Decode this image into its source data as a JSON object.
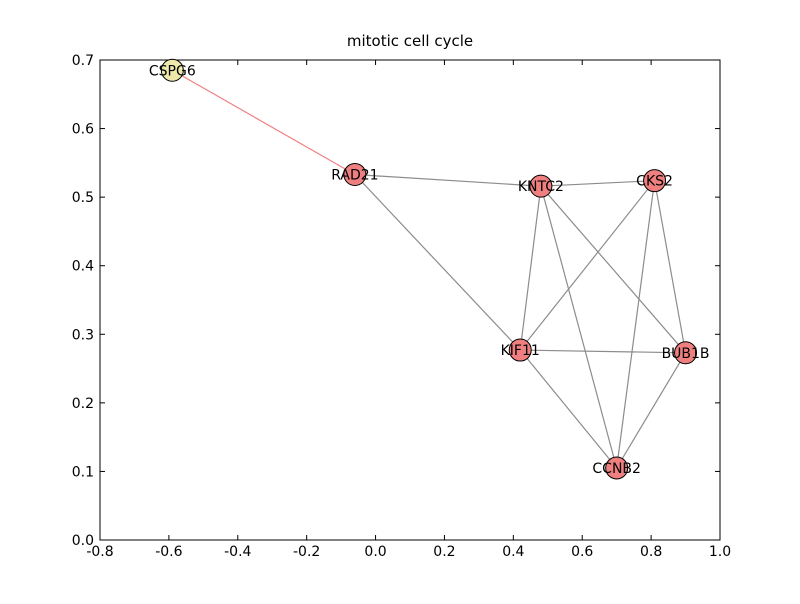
{
  "chart_data": {
    "type": "scatter",
    "title": "mitotic cell cycle",
    "xlabel": "",
    "ylabel": "",
    "xlim": [
      -0.8,
      1.0
    ],
    "ylim": [
      0.0,
      0.7
    ],
    "xticks": [
      -0.8,
      -0.6,
      -0.4,
      -0.2,
      0.0,
      0.2,
      0.4,
      0.6,
      0.8,
      1.0
    ],
    "xtick_labels": [
      "-0.8",
      "-0.6",
      "-0.4",
      "-0.2",
      "0.0",
      "0.2",
      "0.4",
      "0.6",
      "0.8",
      "1.0"
    ],
    "yticks": [
      0.0,
      0.1,
      0.2,
      0.3,
      0.4,
      0.5,
      0.6,
      0.7
    ],
    "ytick_labels": [
      "0.0",
      "0.1",
      "0.2",
      "0.3",
      "0.4",
      "0.5",
      "0.6",
      "0.7"
    ],
    "grid": false,
    "nodes": [
      {
        "label": "CSPG6",
        "x": -0.59,
        "y": 0.685,
        "color": "#eee8aa"
      },
      {
        "label": "RAD21",
        "x": -0.06,
        "y": 0.533,
        "color": "#f08080"
      },
      {
        "label": "KNTC2",
        "x": 0.48,
        "y": 0.516,
        "color": "#f08080"
      },
      {
        "label": "CKS2",
        "x": 0.81,
        "y": 0.524,
        "color": "#f08080"
      },
      {
        "label": "KIF11",
        "x": 0.42,
        "y": 0.277,
        "color": "#f08080"
      },
      {
        "label": "BUB1B",
        "x": 0.9,
        "y": 0.273,
        "color": "#f08080"
      },
      {
        "label": "CCNB2",
        "x": 0.7,
        "y": 0.105,
        "color": "#f08080"
      }
    ],
    "edges": [
      {
        "source": "CSPG6",
        "target": "RAD21",
        "color": "#f08080"
      },
      {
        "source": "RAD21",
        "target": "KNTC2",
        "color": "#8c8c8c"
      },
      {
        "source": "RAD21",
        "target": "KIF11",
        "color": "#8c8c8c"
      },
      {
        "source": "KNTC2",
        "target": "CKS2",
        "color": "#8c8c8c"
      },
      {
        "source": "KNTC2",
        "target": "KIF11",
        "color": "#8c8c8c"
      },
      {
        "source": "KNTC2",
        "target": "BUB1B",
        "color": "#8c8c8c"
      },
      {
        "source": "KNTC2",
        "target": "CCNB2",
        "color": "#8c8c8c"
      },
      {
        "source": "CKS2",
        "target": "KIF11",
        "color": "#8c8c8c"
      },
      {
        "source": "CKS2",
        "target": "BUB1B",
        "color": "#8c8c8c"
      },
      {
        "source": "CKS2",
        "target": "CCNB2",
        "color": "#8c8c8c"
      },
      {
        "source": "KIF11",
        "target": "BUB1B",
        "color": "#8c8c8c"
      },
      {
        "source": "KIF11",
        "target": "CCNB2",
        "color": "#8c8c8c"
      },
      {
        "source": "BUB1B",
        "target": "CCNB2",
        "color": "#8c8c8c"
      }
    ]
  }
}
